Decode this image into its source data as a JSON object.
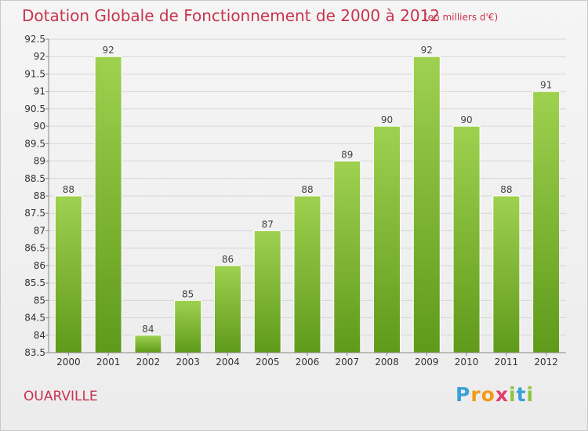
{
  "header": {
    "title": "Dotation Globale de Fonctionnement de 2000 à 2012",
    "subtitle": "(en milliers d'€)"
  },
  "footer": {
    "commune": "OUARVILLE",
    "logo": {
      "letters": [
        "P",
        "r",
        "o",
        "x",
        "i",
        "t",
        "i"
      ],
      "colors": [
        "#3aa0d8",
        "#f09a1a",
        "#f09a1a",
        "#e03c6c",
        "#8cc63f",
        "#3aa0d8",
        "#8cc63f"
      ]
    }
  },
  "colors": {
    "bar_top": "#9fd150",
    "bar_bottom": "#5f9a1a",
    "text_accent": "#c8344e"
  },
  "chart_data": {
    "type": "bar",
    "title": "Dotation Globale de Fonctionnement de 2000 à 2012",
    "subtitle": "(en milliers d'€)",
    "xlabel": "",
    "ylabel": "",
    "categories": [
      "2000",
      "2001",
      "2002",
      "2003",
      "2004",
      "2005",
      "2006",
      "2007",
      "2008",
      "2009",
      "2010",
      "2011",
      "2012"
    ],
    "values": [
      88,
      92,
      84,
      85,
      86,
      87,
      88,
      89,
      90,
      92,
      90,
      88,
      91
    ],
    "ylim": [
      83.5,
      92.5
    ],
    "yticks": [
      "83.5",
      "84",
      "84.5",
      "85",
      "85.5",
      "86",
      "86.5",
      "87",
      "87.5",
      "88",
      "88.5",
      "89",
      "89.5",
      "90",
      "90.5",
      "91",
      "91.5",
      "92",
      "92.5"
    ],
    "grid": true,
    "legend": "none"
  }
}
